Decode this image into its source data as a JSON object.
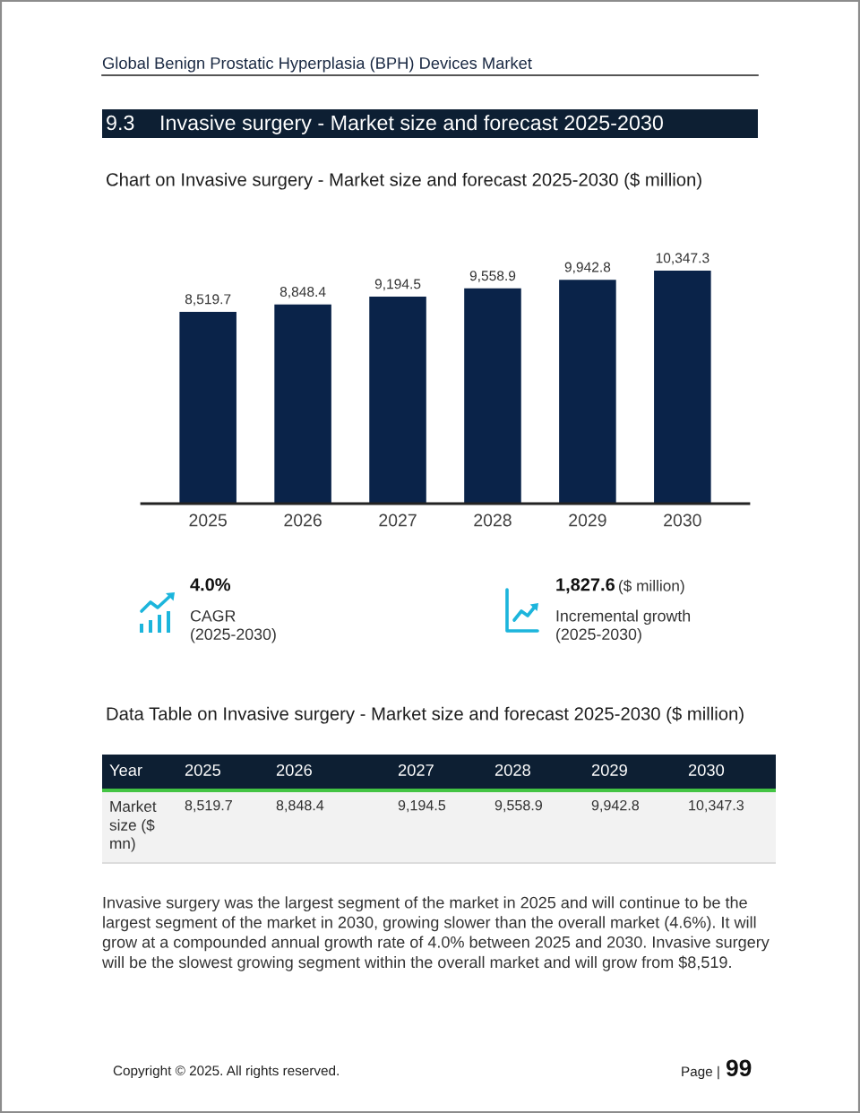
{
  "chart_data": {
    "type": "bar",
    "title": "Chart on Invasive surgery - Market size and forecast 2025-2030 ($ million)",
    "categories": [
      "2025",
      "2026",
      "2027",
      "2028",
      "2029",
      "2030"
    ],
    "values": [
      8519.7,
      8848.4,
      9194.5,
      9558.9,
      9942.8,
      10347.3
    ],
    "value_labels": [
      "8,519.7",
      "8,848.4",
      "9,194.5",
      "9,558.9",
      "9,942.8",
      "10,347.3"
    ],
    "color": "#0a2349",
    "annotations": [
      "Global Benign Prostatic Hyperplasia (BPH) Devices Market",
      "9.3",
      "Invasive surgery - Market size and forecast 2025-2030",
      "4.0%",
      "CAGR\n(2025-2030)",
      "1,827.6",
      "($ million)",
      "Incremental growth\n(2025-2030)",
      "Data Table on Invasive surgery - Market size and forecast 2025-2030 ($ million)",
      "Year",
      "Market\nsize ($\nmn)",
      "Invasive surgery was the largest segment of the market in 2025 and will continue to be the\nlargest segment of the market in 2030, growing slower than the overall market (4.6%). It will\ngrow at a compounded annual growth rate of 4.0% between 2025 and 2030. Invasive surgery\nwill be the slowest growing segment within the overall market and will grow from $8,519.",
      "Copyright © 2025. All rights reserved.",
      "Page |",
      "99"
    ]
  }
}
